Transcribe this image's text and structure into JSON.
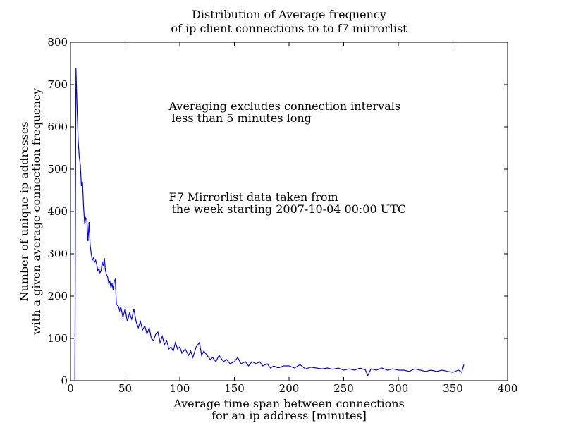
{
  "chart_data": {
    "type": "line",
    "title": [
      "Distribution of Average frequency",
      "of ip client connections to to f7 mirrorlist"
    ],
    "xlabel": [
      "Average time span between connections",
      "for an ip address [minutes]"
    ],
    "ylabel": [
      "Number of unique ip addresses",
      "with a given average connection frequency"
    ],
    "annotations": [
      {
        "x": 90,
        "y": 640,
        "lines": [
          "Averaging excludes connection intervals",
          "less than 5 minutes long"
        ]
      },
      {
        "x": 90,
        "y": 425,
        "lines": [
          "F7 Mirrorlist data taken from",
          "the week starting 2007-10-04 00:00 UTC"
        ]
      }
    ],
    "xlim": [
      0,
      400
    ],
    "xticks": [
      0,
      50,
      100,
      150,
      200,
      250,
      300,
      350,
      400
    ],
    "ylim": [
      0,
      800
    ],
    "yticks": [
      0,
      100,
      200,
      300,
      400,
      500,
      600,
      700,
      800
    ],
    "series": [
      {
        "color": "#0000ff",
        "x": [
          4,
          5,
          6,
          7,
          8,
          9,
          10,
          11,
          12,
          13,
          14,
          15,
          16,
          17,
          18,
          19,
          20,
          21,
          22,
          23,
          24,
          25,
          26,
          27,
          28,
          29,
          30,
          31,
          32,
          33,
          34,
          35,
          36,
          37,
          38,
          39,
          40,
          41,
          42,
          44,
          45,
          46,
          48,
          50,
          52,
          54,
          56,
          58,
          60,
          62,
          64,
          66,
          68,
          70,
          72,
          74,
          76,
          78,
          80,
          82,
          84,
          86,
          88,
          90,
          92,
          94,
          96,
          98,
          100,
          102,
          105,
          108,
          110,
          112,
          115,
          118,
          120,
          122,
          125,
          128,
          130,
          133,
          136,
          140,
          143,
          146,
          150,
          153,
          156,
          160,
          163,
          166,
          170,
          173,
          176,
          180,
          183,
          186,
          190,
          195,
          200,
          205,
          210,
          215,
          220,
          225,
          230,
          235,
          240,
          245,
          250,
          255,
          260,
          265,
          270,
          272,
          275,
          280,
          285,
          290,
          295,
          300,
          305,
          310,
          315,
          320,
          325,
          330,
          335,
          340,
          345,
          350,
          355,
          358,
          360
        ],
        "values": [
          0,
          740,
          650,
          570,
          530,
          510,
          460,
          470,
          410,
          370,
          385,
          380,
          330,
          375,
          320,
          300,
          285,
          290,
          280,
          285,
          275,
          260,
          265,
          255,
          260,
          280,
          270,
          290,
          260,
          250,
          245,
          230,
          235,
          220,
          230,
          215,
          235,
          240,
          180,
          175,
          165,
          175,
          150,
          170,
          140,
          160,
          145,
          170,
          140,
          125,
          140,
          120,
          130,
          110,
          125,
          100,
          95,
          110,
          115,
          90,
          105,
          85,
          95,
          75,
          80,
          70,
          90,
          75,
          80,
          65,
          75,
          60,
          70,
          55,
          80,
          90,
          60,
          70,
          60,
          50,
          55,
          45,
          60,
          45,
          50,
          40,
          45,
          55,
          40,
          45,
          35,
          45,
          40,
          45,
          35,
          40,
          30,
          35,
          30,
          35,
          35,
          30,
          38,
          28,
          32,
          30,
          28,
          30,
          27,
          30,
          25,
          28,
          25,
          30,
          25,
          12,
          28,
          25,
          30,
          25,
          28,
          25,
          25,
          22,
          28,
          25,
          22,
          25,
          22,
          25,
          22,
          20,
          25,
          20,
          38
        ]
      }
    ]
  }
}
